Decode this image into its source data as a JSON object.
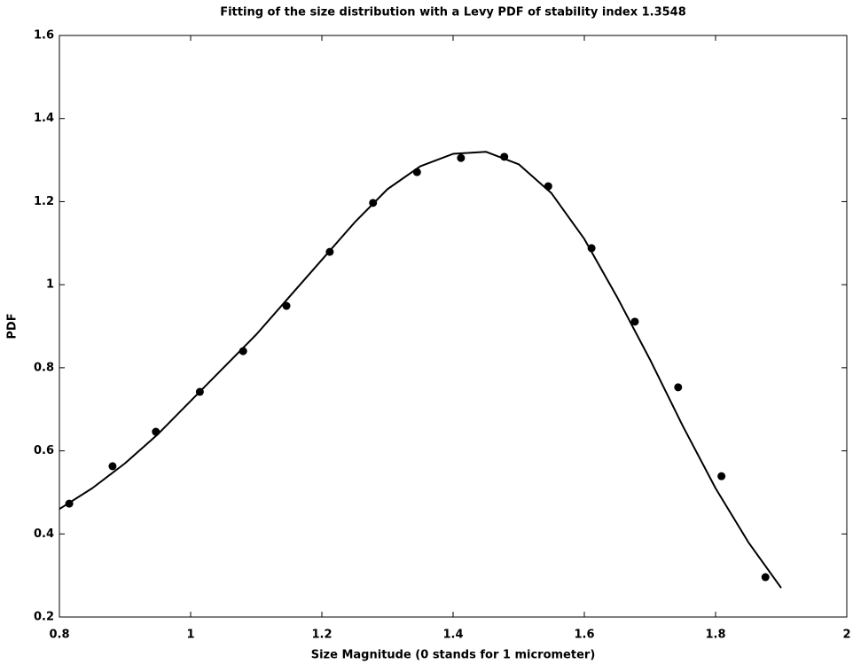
{
  "chart_data": {
    "type": "scatter",
    "title": "Fitting of the size distribution with a Levy PDF of stability index 1.3548",
    "x_label": "Size Magnitude (0 stands for 1 micrometer)",
    "y_label": "PDF",
    "xlim": [
      0.8,
      2
    ],
    "xticks": [
      0.8,
      1,
      1.2,
      1.4,
      1.6,
      1.8,
      2
    ],
    "ylim": [
      0.2,
      1.6
    ],
    "yticks": [
      0.2,
      0.4,
      0.6,
      0.8,
      1,
      1.2,
      1.4,
      1.6
    ],
    "series": [
      {
        "type": "line",
        "color": "#000000",
        "x": [
          0.8,
          0.85,
          0.9,
          0.95,
          1.0,
          1.05,
          1.1,
          1.15,
          1.2,
          1.25,
          1.3,
          1.35,
          1.4,
          1.45,
          1.5,
          1.55,
          1.6,
          1.65,
          1.7,
          1.75,
          1.8,
          1.85,
          1.9
        ],
        "values": [
          0.46,
          0.51,
          0.57,
          0.64,
          0.72,
          0.8,
          0.88,
          0.97,
          1.06,
          1.15,
          1.23,
          1.285,
          1.315,
          1.32,
          1.29,
          1.22,
          1.11,
          0.97,
          0.82,
          0.66,
          0.51,
          0.38,
          0.27
        ]
      },
      {
        "type": "scatter",
        "color": "#000000",
        "x": [
          0.815,
          0.881,
          0.947,
          1.014,
          1.08,
          1.146,
          1.212,
          1.278,
          1.345,
          1.412,
          1.478,
          1.545,
          1.611,
          1.677,
          1.743,
          1.809,
          1.876
        ],
        "values": [
          0.473,
          0.563,
          0.646,
          0.742,
          0.84,
          0.949,
          1.079,
          1.197,
          1.271,
          1.305,
          1.308,
          1.237,
          1.088,
          0.911,
          0.753,
          0.539,
          0.296
        ]
      }
    ]
  }
}
